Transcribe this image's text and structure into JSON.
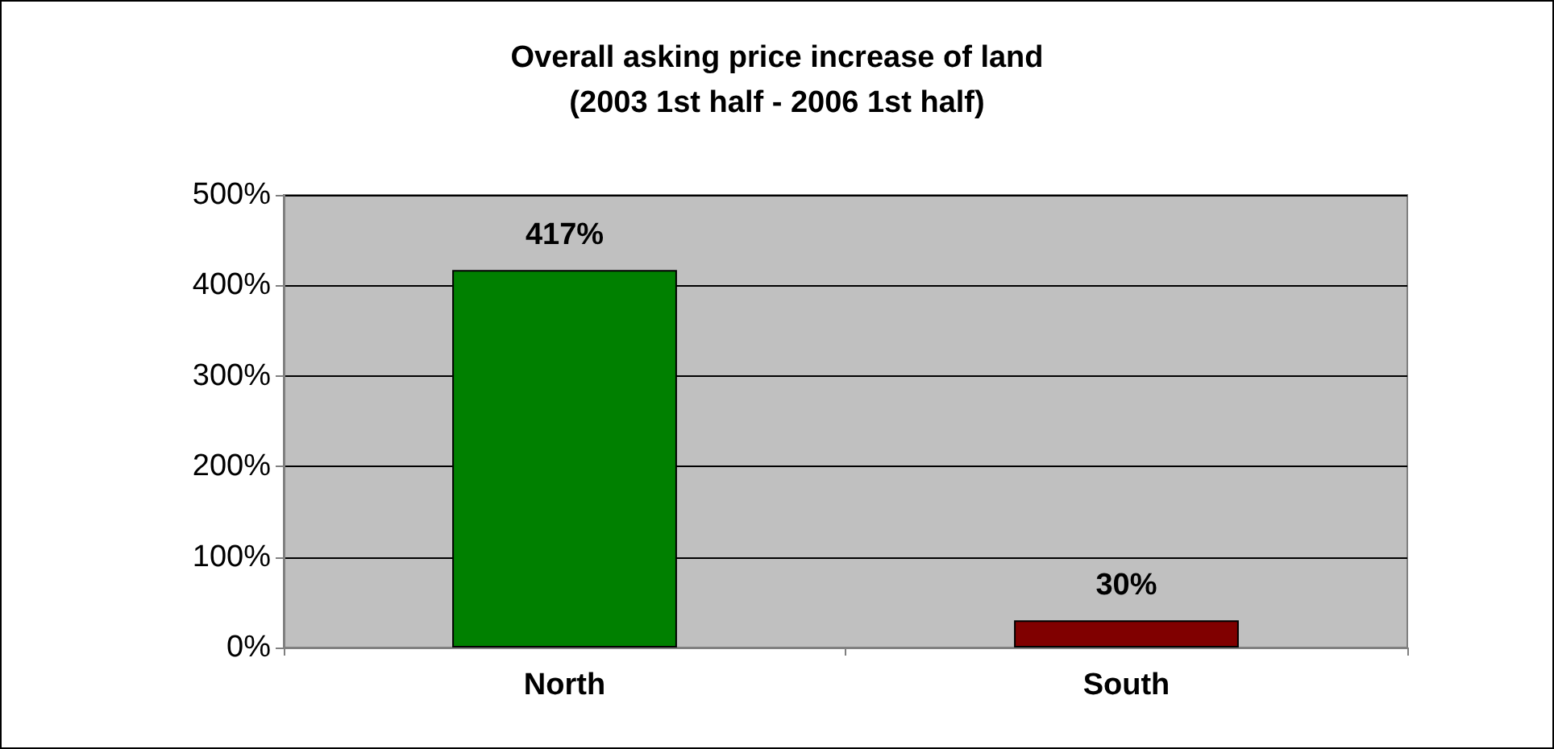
{
  "chart_data": {
    "type": "bar",
    "title": "Overall asking price increase of land\n(2003 1st half - 2006 1st half)",
    "categories": [
      "North",
      "South"
    ],
    "values": [
      417,
      30
    ],
    "colors": [
      "#008000",
      "#800000"
    ],
    "value_labels": [
      "417%",
      "30%"
    ],
    "ylim": [
      0,
      500
    ],
    "yticks": [
      {
        "value": 0,
        "label": "0%"
      },
      {
        "value": 100,
        "label": "100%"
      },
      {
        "value": 200,
        "label": "200%"
      },
      {
        "value": 300,
        "label": "300%"
      },
      {
        "value": 400,
        "label": "400%"
      },
      {
        "value": 500,
        "label": "500%"
      }
    ],
    "grid": "y"
  }
}
